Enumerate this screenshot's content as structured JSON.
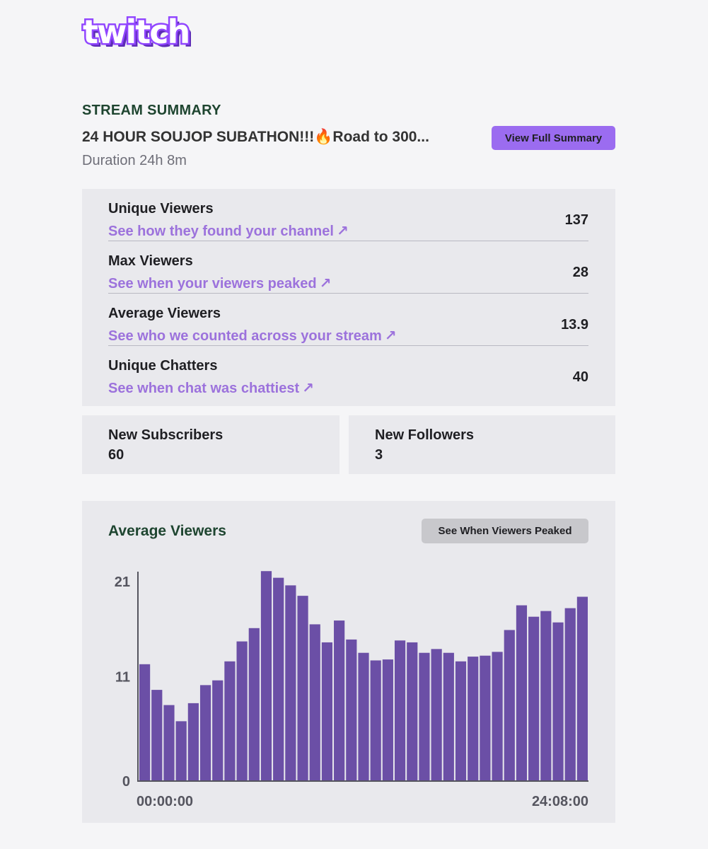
{
  "brand": {
    "logo_text": "twitch",
    "logo_color": "#9146ff"
  },
  "summary": {
    "section_title": "STREAM SUMMARY",
    "stream_title": "24 HOUR SOUJOP SUBATHON!!!🔥Road to 300...",
    "duration": "Duration 24h 8m",
    "view_full_label": "View Full Summary"
  },
  "stats": [
    {
      "label": "Unique Viewers",
      "link": "See how they found your channel",
      "value": "137"
    },
    {
      "label": "Max Viewers",
      "link": "See when your viewers peaked",
      "value": "28"
    },
    {
      "label": "Average Viewers",
      "link": "See who we counted across your stream",
      "value": "13.9"
    },
    {
      "label": "Unique Chatters",
      "link": "See when chat was chattiest",
      "value": "40"
    }
  ],
  "arrow_glyph": "↗",
  "cards": {
    "subscribers": {
      "label": "New Subscribers",
      "value": "60"
    },
    "followers": {
      "label": "New Followers",
      "value": "3"
    }
  },
  "chart_section": {
    "title": "Average Viewers",
    "button_label": "See When Viewers Peaked"
  },
  "chart_data": {
    "type": "bar",
    "title": "Average Viewers",
    "bar_color": "#6b4fa6",
    "ylim": [
      0,
      21
    ],
    "yticks": [
      "21",
      "11",
      "0"
    ],
    "ytick_values": [
      21,
      11,
      0
    ],
    "x_start_label": "00:00:00",
    "x_end_label": "24:08:00",
    "values": [
      12.3,
      9.6,
      8.0,
      6.3,
      8.2,
      10.1,
      10.6,
      12.6,
      14.7,
      16.1,
      22.1,
      21.4,
      20.6,
      19.5,
      16.5,
      14.6,
      16.9,
      14.9,
      13.5,
      12.7,
      12.8,
      14.8,
      14.6,
      13.5,
      13.9,
      13.5,
      12.6,
      13.1,
      13.2,
      13.6,
      15.9,
      18.5,
      17.3,
      17.9,
      16.7,
      18.2,
      19.4
    ]
  }
}
